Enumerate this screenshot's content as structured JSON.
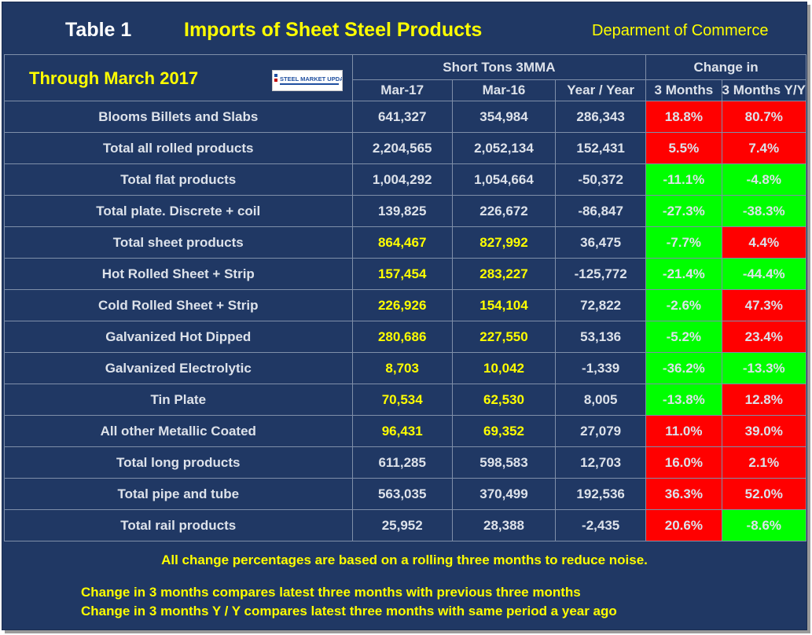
{
  "header": {
    "table_label": "Table 1",
    "title": "Imports of Sheet Steel Products",
    "source": "Deparment of Commerce"
  },
  "subheader": {
    "through": "Through March 2017",
    "logo_text": "STEEL MARKET UPDATE",
    "group_tons": "Short Tons 3MMA",
    "group_change": "Change in",
    "col_mar17": "Mar-17",
    "col_mar16": "Mar-16",
    "col_yoy": "Year / Year",
    "col_3m": "3 Months",
    "col_3myy": "3 Months Y/Y"
  },
  "rows": [
    {
      "label": "Blooms Billets and Slabs",
      "mar17": "641,327",
      "mar16": "354,984",
      "yoy": "286,343",
      "m3": "18.8%",
      "m3yy": "80.7%"
    },
    {
      "label": "Total all rolled products",
      "mar17": "2,204,565",
      "mar16": "2,052,134",
      "yoy": "152,431",
      "m3": "5.5%",
      "m3yy": "7.4%"
    },
    {
      "label": "Total flat products",
      "mar17": "1,004,292",
      "mar16": "1,054,664",
      "yoy": "-50,372",
      "m3": "-11.1%",
      "m3yy": "-4.8%"
    },
    {
      "label": "Total plate. Discrete + coil",
      "mar17": "139,825",
      "mar16": "226,672",
      "yoy": "-86,847",
      "m3": "-27.3%",
      "m3yy": "-38.3%"
    },
    {
      "label": "Total sheet products",
      "mar17": "864,467",
      "mar16": "827,992",
      "yoy": "36,475",
      "m3": "-7.7%",
      "m3yy": "4.4%"
    },
    {
      "label": "Hot Rolled Sheet + Strip",
      "mar17": "157,454",
      "mar16": "283,227",
      "yoy": "-125,772",
      "m3": "-21.4%",
      "m3yy": "-44.4%"
    },
    {
      "label": "Cold Rolled Sheet + Strip",
      "mar17": "226,926",
      "mar16": "154,104",
      "yoy": "72,822",
      "m3": "-2.6%",
      "m3yy": "47.3%"
    },
    {
      "label": "Galvanized Hot Dipped",
      "mar17": "280,686",
      "mar16": "227,550",
      "yoy": "53,136",
      "m3": "-5.2%",
      "m3yy": "23.4%"
    },
    {
      "label": "Galvanized Electrolytic",
      "mar17": "8,703",
      "mar16": "10,042",
      "yoy": "-1,339",
      "m3": "-36.2%",
      "m3yy": "-13.3%"
    },
    {
      "label": "Tin Plate",
      "mar17": "70,534",
      "mar16": "62,530",
      "yoy": "8,005",
      "m3": "-13.8%",
      "m3yy": "12.8%"
    },
    {
      "label": "All other Metallic Coated",
      "mar17": "96,431",
      "mar16": "69,352",
      "yoy": "27,079",
      "m3": "11.0%",
      "m3yy": "39.0%"
    },
    {
      "label": "Total long products",
      "mar17": "611,285",
      "mar16": "598,583",
      "yoy": "12,703",
      "m3": "16.0%",
      "m3yy": "2.1%"
    },
    {
      "label": "Total pipe and tube",
      "mar17": "563,035",
      "mar16": "370,499",
      "yoy": "192,536",
      "m3": "36.3%",
      "m3yy": "52.0%"
    },
    {
      "label": "Total rail products",
      "mar17": "25,952",
      "mar16": "28,388",
      "yoy": "-2,435",
      "m3": "20.6%",
      "m3yy": "-8.6%"
    }
  ],
  "notes": {
    "note1": "All change percentages are based on a rolling three months to reduce noise.",
    "note2": "Change in 3 months compares latest three months with previous three months",
    "note3": "Change in 3 months  Y / Y compares latest three months with same period a year ago"
  },
  "colors": {
    "background": "#203864",
    "increase": "#ff0000",
    "decrease": "#00ff00",
    "highlight_text": "#ffff00"
  }
}
